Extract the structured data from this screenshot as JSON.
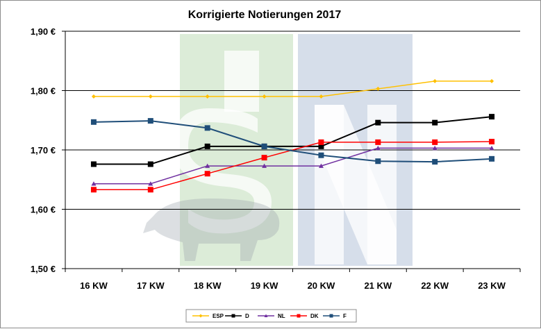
{
  "chart_data": {
    "type": "line",
    "title": "Korrigierte Notierungen 2017",
    "xlabel": "",
    "ylabel": "",
    "categories": [
      "16 KW",
      "17 KW",
      "18 KW",
      "19 KW",
      "20 KW",
      "21 KW",
      "22 KW",
      "23 KW"
    ],
    "ylim": [
      1.5,
      1.9
    ],
    "yticks": [
      1.5,
      1.6,
      1.7,
      1.8,
      1.9
    ],
    "ytick_labels": [
      "1,50 €",
      "1,60 €",
      "1,70 €",
      "1,80 €",
      "1,90 €"
    ],
    "grid": "horizontal",
    "legend_position": "bottom",
    "series": [
      {
        "name": "ESP",
        "color": "#FFC000",
        "marker": "diamond",
        "values": [
          1.79,
          1.79,
          1.79,
          1.79,
          1.79,
          1.803,
          1.816,
          1.816
        ]
      },
      {
        "name": "D",
        "color": "#000000",
        "marker": "square",
        "values": [
          1.676,
          1.676,
          1.706,
          1.706,
          1.706,
          1.746,
          1.746,
          1.756
        ]
      },
      {
        "name": "NL",
        "color": "#7030A0",
        "marker": "triangle",
        "values": [
          1.643,
          1.643,
          1.673,
          1.673,
          1.673,
          1.703,
          1.703,
          1.703
        ]
      },
      {
        "name": "DK",
        "color": "#FF0000",
        "marker": "square",
        "values": [
          1.633,
          1.633,
          1.66,
          1.687,
          1.713,
          1.713,
          1.713,
          1.714
        ]
      },
      {
        "name": "F",
        "color": "#1F4E79",
        "marker": "square",
        "values": [
          1.747,
          1.749,
          1.737,
          1.706,
          1.691,
          1.681,
          1.68,
          1.685
        ]
      }
    ]
  }
}
